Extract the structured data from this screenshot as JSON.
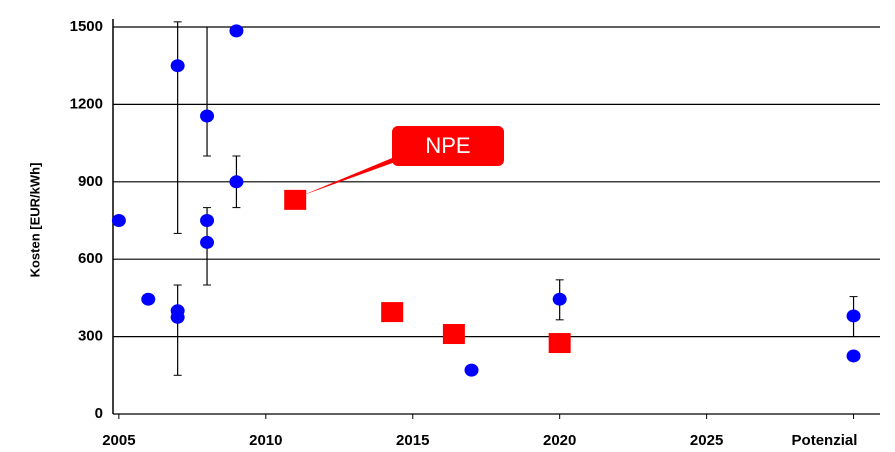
{
  "chart_data": {
    "type": "scatter",
    "y_label": "Kosten [EUR/kWh]",
    "xlim": [
      2004.8,
      2030.9
    ],
    "ylim": [
      0,
      1500
    ],
    "xticks": [
      2005,
      2010,
      2015,
      2020,
      2025,
      {
        "value": 2030,
        "label": "Potenzial"
      }
    ],
    "yticks": [
      0,
      300,
      600,
      900,
      1200,
      1500
    ],
    "grid": true,
    "series": [
      {
        "color": "#0000ff",
        "marker": "circle",
        "x": [
          2005,
          2006,
          2007,
          2007,
          2007,
          2008,
          2008,
          2008,
          2009,
          2009,
          2017,
          2020,
          2030,
          2030
        ],
        "values": [
          750,
          445,
          1350,
          400,
          375,
          1155,
          750,
          665,
          1485,
          900,
          170,
          445,
          380,
          225
        ]
      },
      {
        "color": "#ff0000",
        "marker": "square",
        "x": [
          2011,
          2014.3,
          2016.4,
          2020
        ],
        "values": [
          830,
          395,
          310,
          275
        ]
      }
    ],
    "error_bars": [
      {
        "x": 2007,
        "low": 700,
        "high": 1520
      },
      {
        "x": 2007,
        "low": 150,
        "high": 500
      },
      {
        "x": 2008,
        "low": 1000,
        "high": 1500
      },
      {
        "x": 2008,
        "low": 500,
        "high": 800
      },
      {
        "x": 2009,
        "low": 800,
        "high": 1000
      },
      {
        "x": 2020,
        "low": 365,
        "high": 520
      },
      {
        "x": 2030,
        "low": 300,
        "high": 455
      }
    ],
    "annotation": {
      "text": "NPE",
      "color": "#ff0000"
    }
  }
}
